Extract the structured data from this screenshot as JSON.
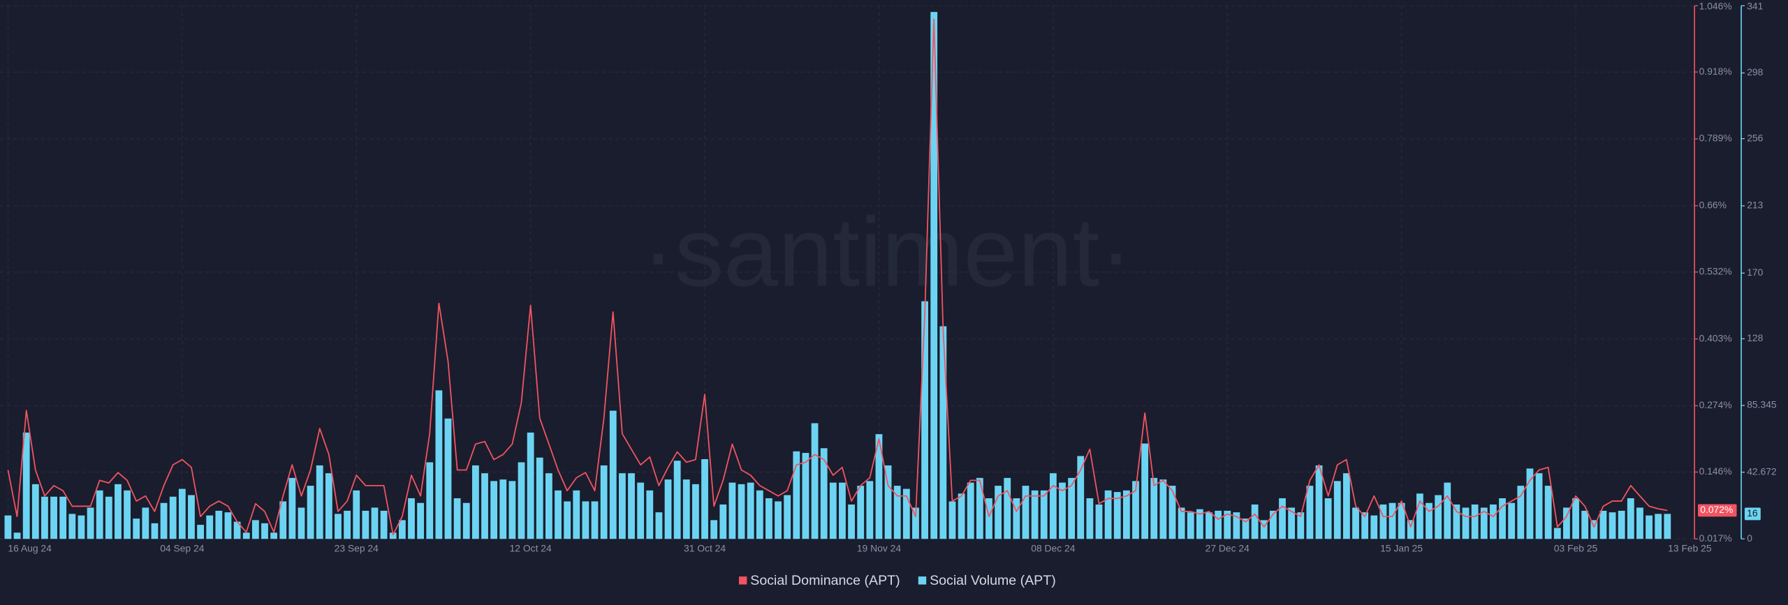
{
  "chart_data": {
    "type": "bar",
    "watermark": "·santiment·",
    "categories": [
      "16 Aug 24",
      null,
      null,
      null,
      null,
      null,
      null,
      null,
      null,
      null,
      null,
      null,
      null,
      null,
      null,
      null,
      null,
      null,
      null,
      "04 Sep 24",
      null,
      null,
      null,
      null,
      null,
      null,
      null,
      null,
      null,
      null,
      null,
      null,
      null,
      null,
      null,
      null,
      null,
      null,
      "23 Sep 24",
      null,
      null,
      null,
      null,
      null,
      null,
      null,
      null,
      null,
      null,
      null,
      null,
      null,
      null,
      null,
      null,
      null,
      null,
      "12 Oct 24",
      null,
      null,
      null,
      null,
      null,
      null,
      null,
      null,
      null,
      null,
      null,
      null,
      null,
      null,
      null,
      null,
      null,
      null,
      "31 Oct 24",
      null,
      null,
      null,
      null,
      null,
      null,
      null,
      null,
      null,
      null,
      null,
      null,
      null,
      null,
      null,
      null,
      null,
      null,
      "19 Nov 24",
      null,
      null,
      null,
      null,
      null,
      null,
      null,
      null,
      null,
      null,
      null,
      null,
      null,
      null,
      null,
      null,
      null,
      null,
      "08 Dec 24",
      null,
      null,
      null,
      null,
      null,
      null,
      null,
      null,
      null,
      null,
      null,
      null,
      null,
      null,
      null,
      null,
      null,
      null,
      "27 Dec 24",
      null,
      null,
      null,
      null,
      null,
      null,
      null,
      null,
      null,
      null,
      null,
      null,
      null,
      null,
      null,
      null,
      null,
      null,
      "15 Jan 25",
      null,
      null,
      null,
      null,
      null,
      null,
      null,
      null,
      null,
      null,
      null,
      null,
      null,
      null,
      null,
      null,
      null,
      null,
      "03 Feb 25",
      null,
      null,
      null,
      null,
      null,
      null,
      null,
      null,
      null,
      "13 Feb 25"
    ],
    "series": [
      {
        "name": "Social Dominance (APT)",
        "type": "line",
        "axis": "y",
        "color": "#f25461",
        "values": [
          0.15,
          0.06,
          0.265,
          0.15,
          0.1,
          0.12,
          0.11,
          0.08,
          0.08,
          0.08,
          0.13,
          0.125,
          0.145,
          0.13,
          0.09,
          0.1,
          0.07,
          0.12,
          0.16,
          0.17,
          0.155,
          0.06,
          0.08,
          0.09,
          0.08,
          0.05,
          0.03,
          0.085,
          0.07,
          0.03,
          0.1,
          0.16,
          0.1,
          0.15,
          0.23,
          0.18,
          0.07,
          0.09,
          0.14,
          0.12,
          0.12,
          0.12,
          0.025,
          0.06,
          0.14,
          0.1,
          0.22,
          0.472,
          0.36,
          0.15,
          0.15,
          0.2,
          0.205,
          0.17,
          0.18,
          0.2,
          0.28,
          0.468,
          0.25,
          0.2,
          0.15,
          0.11,
          0.135,
          0.145,
          0.11,
          0.25,
          0.455,
          0.22,
          0.19,
          0.16,
          0.175,
          0.12,
          0.155,
          0.185,
          0.165,
          0.17,
          0.296,
          0.08,
          0.13,
          0.2,
          0.15,
          0.14,
          0.12,
          0.11,
          0.1,
          0.11,
          0.16,
          0.165,
          0.18,
          0.17,
          0.14,
          0.155,
          0.09,
          0.12,
          0.135,
          0.21,
          0.12,
          0.1,
          0.1,
          0.06,
          0.45,
          1.02,
          0.42,
          0.09,
          0.1,
          0.13,
          0.13,
          0.06,
          0.1,
          0.11,
          0.07,
          0.1,
          0.1,
          0.1,
          0.12,
          0.11,
          0.12,
          0.15,
          0.19,
          0.085,
          0.095,
          0.095,
          0.1,
          0.11,
          0.26,
          0.12,
          0.13,
          0.11,
          0.07,
          0.07,
          0.065,
          0.07,
          0.055,
          0.065,
          0.06,
          0.05,
          0.065,
          0.04,
          0.065,
          0.08,
          0.07,
          0.06,
          0.13,
          0.16,
          0.1,
          0.16,
          0.17,
          0.08,
          0.06,
          0.1,
          0.06,
          0.06,
          0.09,
          0.04,
          0.09,
          0.07,
          0.08,
          0.1,
          0.07,
          0.06,
          0.06,
          0.07,
          0.06,
          0.08,
          0.09,
          0.1,
          0.13,
          0.15,
          0.155,
          0.04,
          0.06,
          0.1,
          0.08,
          0.04,
          0.08,
          0.09,
          0.09,
          0.12,
          0.1,
          0.08,
          0.075,
          0.072
        ],
        "value_labels": {
          "181": "0.072%"
        }
      },
      {
        "name": "Social Volume (APT)",
        "type": "bar",
        "axis": "y2",
        "color": "#6cd4f2",
        "values": [
          15,
          4,
          68,
          35,
          27,
          27,
          27,
          16,
          15,
          20,
          31,
          27,
          35,
          31,
          13,
          20,
          10,
          23,
          27,
          32,
          28,
          9,
          15,
          18,
          17,
          11,
          4,
          12,
          10,
          4,
          24,
          39,
          20,
          34,
          47,
          42,
          16,
          18,
          31,
          18,
          20,
          18,
          4,
          12,
          26,
          23,
          49,
          95,
          77,
          26,
          23,
          47,
          42,
          37,
          38,
          37,
          49,
          68,
          52,
          42,
          31,
          24,
          31,
          24,
          24,
          47,
          82,
          42,
          42,
          36,
          31,
          17,
          38,
          50,
          38,
          35,
          51,
          12,
          22,
          36,
          35,
          36,
          31,
          26,
          24,
          28,
          56,
          55,
          74,
          58,
          36,
          36,
          22,
          34,
          37,
          67,
          47,
          34,
          32,
          20,
          152,
          337,
          136,
          24,
          29,
          36,
          39,
          26,
          34,
          39,
          26,
          34,
          31,
          31,
          42,
          36,
          39,
          53,
          26,
          22,
          31,
          30,
          31,
          37,
          61,
          39,
          38,
          34,
          20,
          17,
          19,
          17,
          18,
          18,
          17,
          13,
          22,
          12,
          18,
          26,
          20,
          17,
          34,
          47,
          26,
          37,
          42,
          20,
          17,
          15,
          22,
          23,
          23,
          12,
          29,
          23,
          28,
          36,
          22,
          20,
          22,
          20,
          22,
          26,
          23,
          34,
          45,
          42,
          34,
          7,
          20,
          26,
          18,
          12,
          18,
          17,
          18,
          26,
          20,
          15,
          16,
          16
        ]
      }
    ],
    "ylim": [
      0.017,
      1.046
    ],
    "yticks": [
      {
        "value": 0.017,
        "label": "0.017%"
      },
      {
        "value": 0.146,
        "label": "0.146%"
      },
      {
        "value": 0.274,
        "label": "0.274%"
      },
      {
        "value": 0.403,
        "label": "0.403%"
      },
      {
        "value": 0.532,
        "label": "0.532%"
      },
      {
        "value": 0.66,
        "label": "0.66%"
      },
      {
        "value": 0.789,
        "label": "0.789%"
      },
      {
        "value": 0.918,
        "label": "0.918%"
      },
      {
        "value": 1.046,
        "label": "1.046%"
      }
    ],
    "y2lim": [
      0,
      341
    ],
    "y2ticks": [
      0,
      42.672,
      85.345,
      128,
      170,
      213,
      256,
      298,
      341
    ],
    "grid": true,
    "legend": "bottom"
  }
}
